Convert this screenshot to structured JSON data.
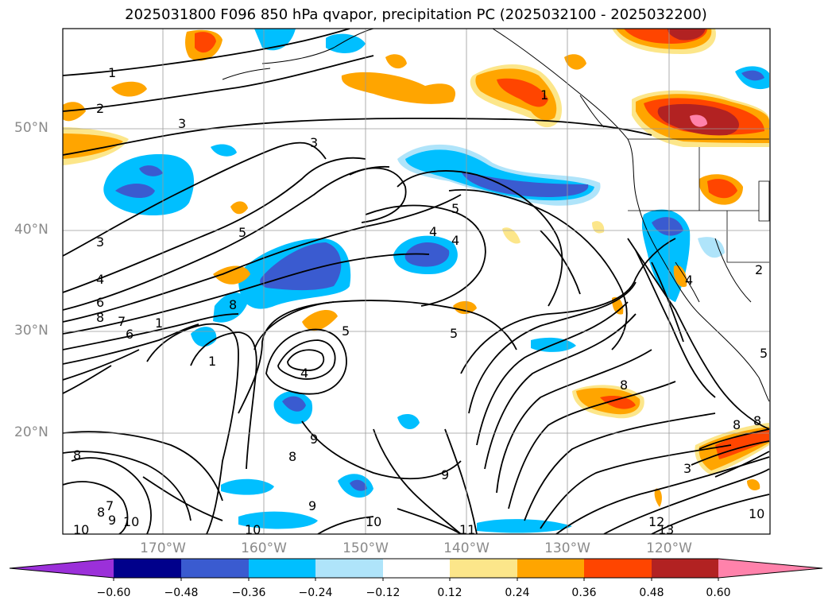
{
  "title": "2025031800 F096 850 hPa qvapor, precipitation PC (2025032100 - 2025032200)",
  "axes": {
    "lat_labels": [
      "50°N",
      "40°N",
      "30°N",
      "20°N"
    ],
    "lon_labels": [
      "170°W",
      "160°W",
      "150°W",
      "140°W",
      "130°W",
      "120°W"
    ]
  },
  "colorbar": {
    "ticks": [
      "−0.60",
      "−0.48",
      "−0.36",
      "−0.24",
      "−0.12",
      "0.12",
      "0.24",
      "0.36",
      "0.48",
      "0.60"
    ],
    "colors": [
      "#9b30d9",
      "#00008b",
      "#3a5bd0",
      "#00bfff",
      "#afe4fa",
      "#ffffff",
      "#fce68a",
      "#ffa500",
      "#ff4500",
      "#b22222",
      "#ff82ab"
    ]
  },
  "contour_labels": [
    "1",
    "2",
    "3",
    "3",
    "3",
    "4",
    "4",
    "4",
    "4",
    "4",
    "5",
    "5",
    "5",
    "5",
    "6",
    "6",
    "7",
    "8",
    "8",
    "8",
    "8",
    "8",
    "9",
    "9",
    "9",
    "9",
    "10",
    "10",
    "10",
    "10",
    "11",
    "12",
    "13",
    "1",
    "1",
    "1",
    "2",
    "3",
    "5",
    "8",
    "8",
    "7",
    "8",
    "10"
  ]
}
